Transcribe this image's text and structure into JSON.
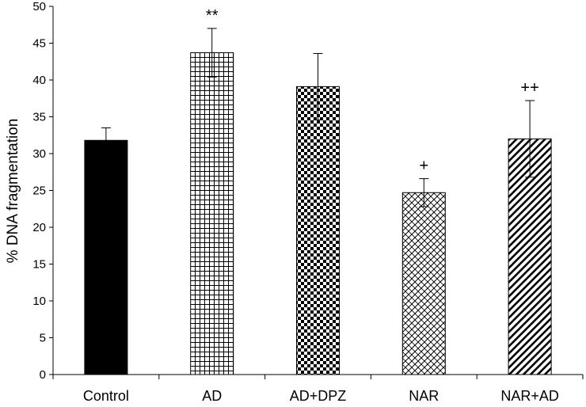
{
  "chart_data": {
    "type": "bar",
    "title": "",
    "xlabel": "",
    "ylabel": "% DNA fragmentation",
    "ylim": [
      0,
      50
    ],
    "yticks": [
      0,
      5,
      10,
      15,
      20,
      25,
      30,
      35,
      40,
      45,
      50
    ],
    "categories": [
      "Control",
      "AD",
      "AD+DPZ",
      "NAR",
      "NAR+AD"
    ],
    "values": [
      31.8,
      43.7,
      39.1,
      24.7,
      32.0
    ],
    "errors": [
      1.7,
      3.3,
      4.5,
      1.9,
      5.2
    ],
    "annotations": [
      "",
      "**",
      "",
      "+",
      "++"
    ],
    "patterns": [
      "solid-black",
      "grid",
      "checker",
      "diagonal-crosshatch",
      "diagonal-stripes"
    ],
    "grid": false,
    "legend": "none"
  }
}
